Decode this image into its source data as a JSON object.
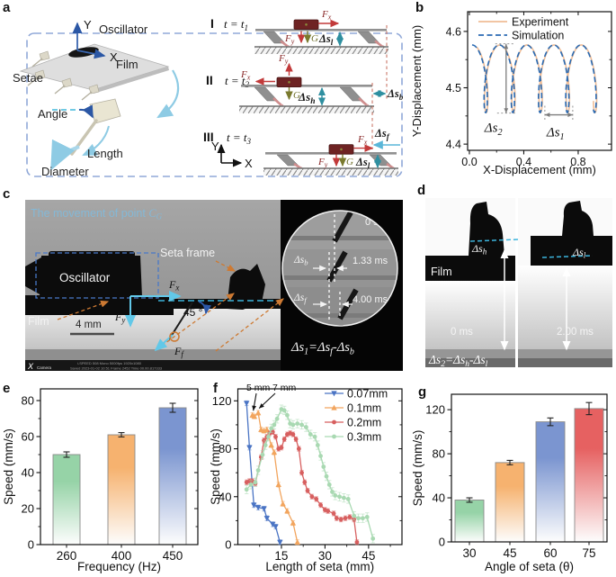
{
  "panel_letters": [
    "a",
    "b",
    "c",
    "d",
    "e",
    "f",
    "g"
  ],
  "panel_a": {
    "schematic": {
      "y": "Y",
      "x": "X",
      "oscillator": "Oscillator",
      "film": "Film",
      "setae": "Setae",
      "angle": "Angle",
      "length": "Length",
      "diameter": "Diameter"
    },
    "rows": [
      {
        "roman": "I",
        "t_pre": "t = t",
        "t_sub": "1"
      },
      {
        "roman": "II",
        "t_pre": "t = t",
        "t_sub": "2"
      },
      {
        "roman": "III",
        "t_pre": "t = t",
        "t_sub": "3"
      }
    ],
    "f": "F",
    "fx_sub": "x",
    "fy_sub": "y",
    "g": "G",
    "ds": "Δs",
    "sub_l": "l",
    "sub_h": "h",
    "sub_b": "b",
    "sub_f": "f",
    "axes3": {
      "y": "Y",
      "x": "X"
    }
  },
  "panel_c": {
    "title_pre": "The movement of point ",
    "title_c": "C",
    "title_sub": "G",
    "oscillator": "Oscillator",
    "seta_frame": "Seta frame",
    "film": "Film",
    "scalebar": "4 mm",
    "angle_value": "45 °",
    "f": "F",
    "sub_x": "x",
    "sub_y": "y",
    "sub_f": "f",
    "inset": {
      "t0": "0 s",
      "t1": "1.33 ms",
      "t2": "4.00 ms",
      "ds": "Δs",
      "sub_b": "b",
      "sub_f": "f",
      "eq_p1": "Δs",
      "eq_s1": "1",
      "eq_p2": "=Δs",
      "eq_s2": "f",
      "eq_p3": "-Δs",
      "eq_s3": "b"
    },
    "watermark1": "i-SPEED 508 Mono 5000fps 1920x1080",
    "watermark2": "Saved 2023-01-02 10:51 Frame 2452 Time 00.00.817333",
    "cam_x": "X",
    "cam_name": "Camera"
  },
  "panel_d": {
    "film": "Film",
    "ds": "Δs",
    "sub_h": "h",
    "sub_l": "l",
    "t0": "0 ms",
    "t1": "2.00 ms",
    "eq_p1": "Δs",
    "eq_s1": "2",
    "eq_p2": "=Δs",
    "eq_s2": "h",
    "eq_p3": "-Δs",
    "eq_s3": "l"
  },
  "chart_data": [
    {
      "id": "b",
      "type": "line",
      "xlabel": "X-Displacement (mm)",
      "ylabel": "Y-Displacement (mm)",
      "xticks": [
        0,
        0.4,
        0.8
      ],
      "xticks_minor": [
        0.2,
        0.6
      ],
      "yticks": [
        4.4,
        4.5,
        4.6
      ],
      "yticks_minor": [
        4.45,
        4.55
      ],
      "xlim": [
        -0.013,
        1.045
      ],
      "ylim": [
        4.389,
        4.635
      ],
      "legend_position": "top-right",
      "grid": false,
      "series": [
        {
          "name": "Experiment",
          "color": "#f0bd96",
          "style": "solid"
        },
        {
          "name": "Simulation",
          "color": "#2a6ab2",
          "style": "dashed"
        }
      ],
      "trajectory": {
        "y_center": 4.516,
        "y_amp": 0.06,
        "x_amp": 0.052,
        "advance_per_cycle": 0.2,
        "cycles": 4.58,
        "x_start_sim": 0.02,
        "x_start_exp": 0.035,
        "phase_exp": 0.35
      },
      "annotations": [
        {
          "label_base": "Δs",
          "label_sub": "2",
          "type": "v",
          "x": 0.27,
          "y1": 4.455,
          "y2": 4.578
        },
        {
          "label_base": "Δs",
          "label_sub": "1",
          "type": "h",
          "y": 4.452,
          "x1": 0.555,
          "x2": 0.76
        }
      ]
    },
    {
      "id": "e",
      "type": "bar",
      "xlabel": "Frequency (Hz)",
      "ylabel": "Speed (mm/s)",
      "categories": [
        "260",
        "400",
        "450"
      ],
      "values": [
        50,
        61,
        76
      ],
      "errors": [
        1.5,
        1.2,
        2.5
      ],
      "bar_colors": [
        "#96d3a7",
        "#f6b26f",
        "#7b95d0"
      ],
      "yticks": [
        0,
        20,
        40,
        60,
        80
      ],
      "yticks_minor": [
        10,
        30,
        50,
        70
      ],
      "ylim": [
        0,
        86.5
      ]
    },
    {
      "id": "f",
      "type": "line",
      "xlabel": "Length of seta (mm)",
      "ylabel": "Speed (mm/s)",
      "xticks": [
        15,
        30,
        45
      ],
      "xticks_minor": [
        7.5,
        22.5,
        37.5,
        52.5
      ],
      "yticks": [
        0,
        40,
        80,
        120
      ],
      "yticks_minor": [
        20,
        60,
        100
      ],
      "xlim": [
        0,
        56.5
      ],
      "ylim": [
        0,
        130
      ],
      "legend_position": "top-right",
      "series": [
        {
          "name": "0.07mm",
          "color": "#4a74c4",
          "marker": "tri-down",
          "err": 2,
          "points": [
            [
              3,
              118
            ],
            [
              4,
              81
            ],
            [
              5.5,
              33
            ],
            [
              7,
              31
            ],
            [
              9,
              30
            ],
            [
              10,
              22
            ],
            [
              12,
              17
            ],
            [
              13,
              15
            ],
            [
              14.5,
              2
            ]
          ]
        },
        {
          "name": "0.1mm",
          "color": "#f2a55e",
          "marker": "tri-up",
          "err": 2,
          "points": [
            [
              5,
              108
            ],
            [
              5.7,
              107
            ],
            [
              7,
              110
            ],
            [
              8,
              96
            ],
            [
              9,
              95
            ],
            [
              10,
              96
            ],
            [
              11.5,
              83
            ],
            [
              12.5,
              77
            ],
            [
              14,
              50
            ],
            [
              15.5,
              34
            ],
            [
              17,
              28
            ],
            [
              19,
              18
            ],
            [
              20.5,
              2
            ]
          ]
        },
        {
          "name": "0.2mm",
          "color": "#d75f5f",
          "marker": "circle",
          "err": 2,
          "points": [
            [
              3,
              52
            ],
            [
              4,
              53
            ],
            [
              5,
              53
            ],
            [
              6,
              51
            ],
            [
              8,
              73
            ],
            [
              9,
              87
            ],
            [
              10,
              90
            ],
            [
              11,
              93
            ],
            [
              12,
              94
            ],
            [
              13,
              90
            ],
            [
              14,
              80
            ],
            [
              15,
              81
            ],
            [
              16,
              88
            ],
            [
              17,
              92
            ],
            [
              18,
              93
            ],
            [
              19,
              92
            ],
            [
              20,
              88
            ],
            [
              21,
              80
            ],
            [
              22,
              60
            ],
            [
              23,
              52
            ],
            [
              24,
              45
            ],
            [
              25.5,
              40
            ],
            [
              27,
              38
            ],
            [
              28.5,
              33
            ],
            [
              30,
              29
            ],
            [
              31,
              28
            ],
            [
              33,
              26
            ],
            [
              34,
              22
            ],
            [
              35.5,
              21
            ],
            [
              37,
              22
            ],
            [
              38.5,
              23
            ],
            [
              40,
              21
            ],
            [
              41,
              2
            ]
          ]
        },
        {
          "name": "0.3mm",
          "color": "#a9d9b2",
          "marker": "circle",
          "err": 3.5,
          "points": [
            [
              3,
              46
            ],
            [
              4.5,
              50
            ],
            [
              6,
              52
            ],
            [
              7,
              62
            ],
            [
              8.5,
              75
            ],
            [
              9.5,
              83
            ],
            [
              10.5,
              90
            ],
            [
              11.5,
              97
            ],
            [
              12.5,
              100
            ],
            [
              13.5,
              105
            ],
            [
              15,
              113
            ],
            [
              16,
              112
            ],
            [
              17,
              108
            ],
            [
              18,
              101
            ],
            [
              19,
              100
            ],
            [
              20.5,
              101
            ],
            [
              22,
              100
            ],
            [
              23.5,
              98
            ],
            [
              25,
              92
            ],
            [
              26.5,
              90
            ],
            [
              27.5,
              83
            ],
            [
              28.5,
              74
            ],
            [
              29.5,
              65
            ],
            [
              30.5,
              57
            ],
            [
              31.5,
              50
            ],
            [
              32.5,
              44
            ],
            [
              33.5,
              41
            ],
            [
              35,
              40
            ],
            [
              36.5,
              39
            ],
            [
              38,
              38
            ],
            [
              40,
              24
            ],
            [
              41.5,
              22
            ],
            [
              43,
              22
            ],
            [
              44.5,
              23
            ],
            [
              46.5,
              5
            ]
          ]
        }
      ],
      "annotations": [
        {
          "label": "5 mm",
          "x": 5,
          "y": 108
        },
        {
          "label": "7 mm",
          "x": 7,
          "y": 110
        }
      ]
    },
    {
      "id": "g",
      "type": "bar",
      "xlabel": "Angle of seta (θ)",
      "ylabel": "Speed (mm/s)",
      "categories": [
        "30",
        "45",
        "60",
        "75"
      ],
      "values": [
        38,
        72,
        109,
        121
      ],
      "errors": [
        2,
        2,
        3.5,
        5.5
      ],
      "bar_colors": [
        "#96d3a7",
        "#f6b26f",
        "#7b95d0",
        "#e66161"
      ],
      "yticks": [
        0,
        40,
        80,
        120
      ],
      "yticks_minor": [
        20,
        60,
        100
      ],
      "ylim": [
        0,
        134
      ]
    }
  ]
}
